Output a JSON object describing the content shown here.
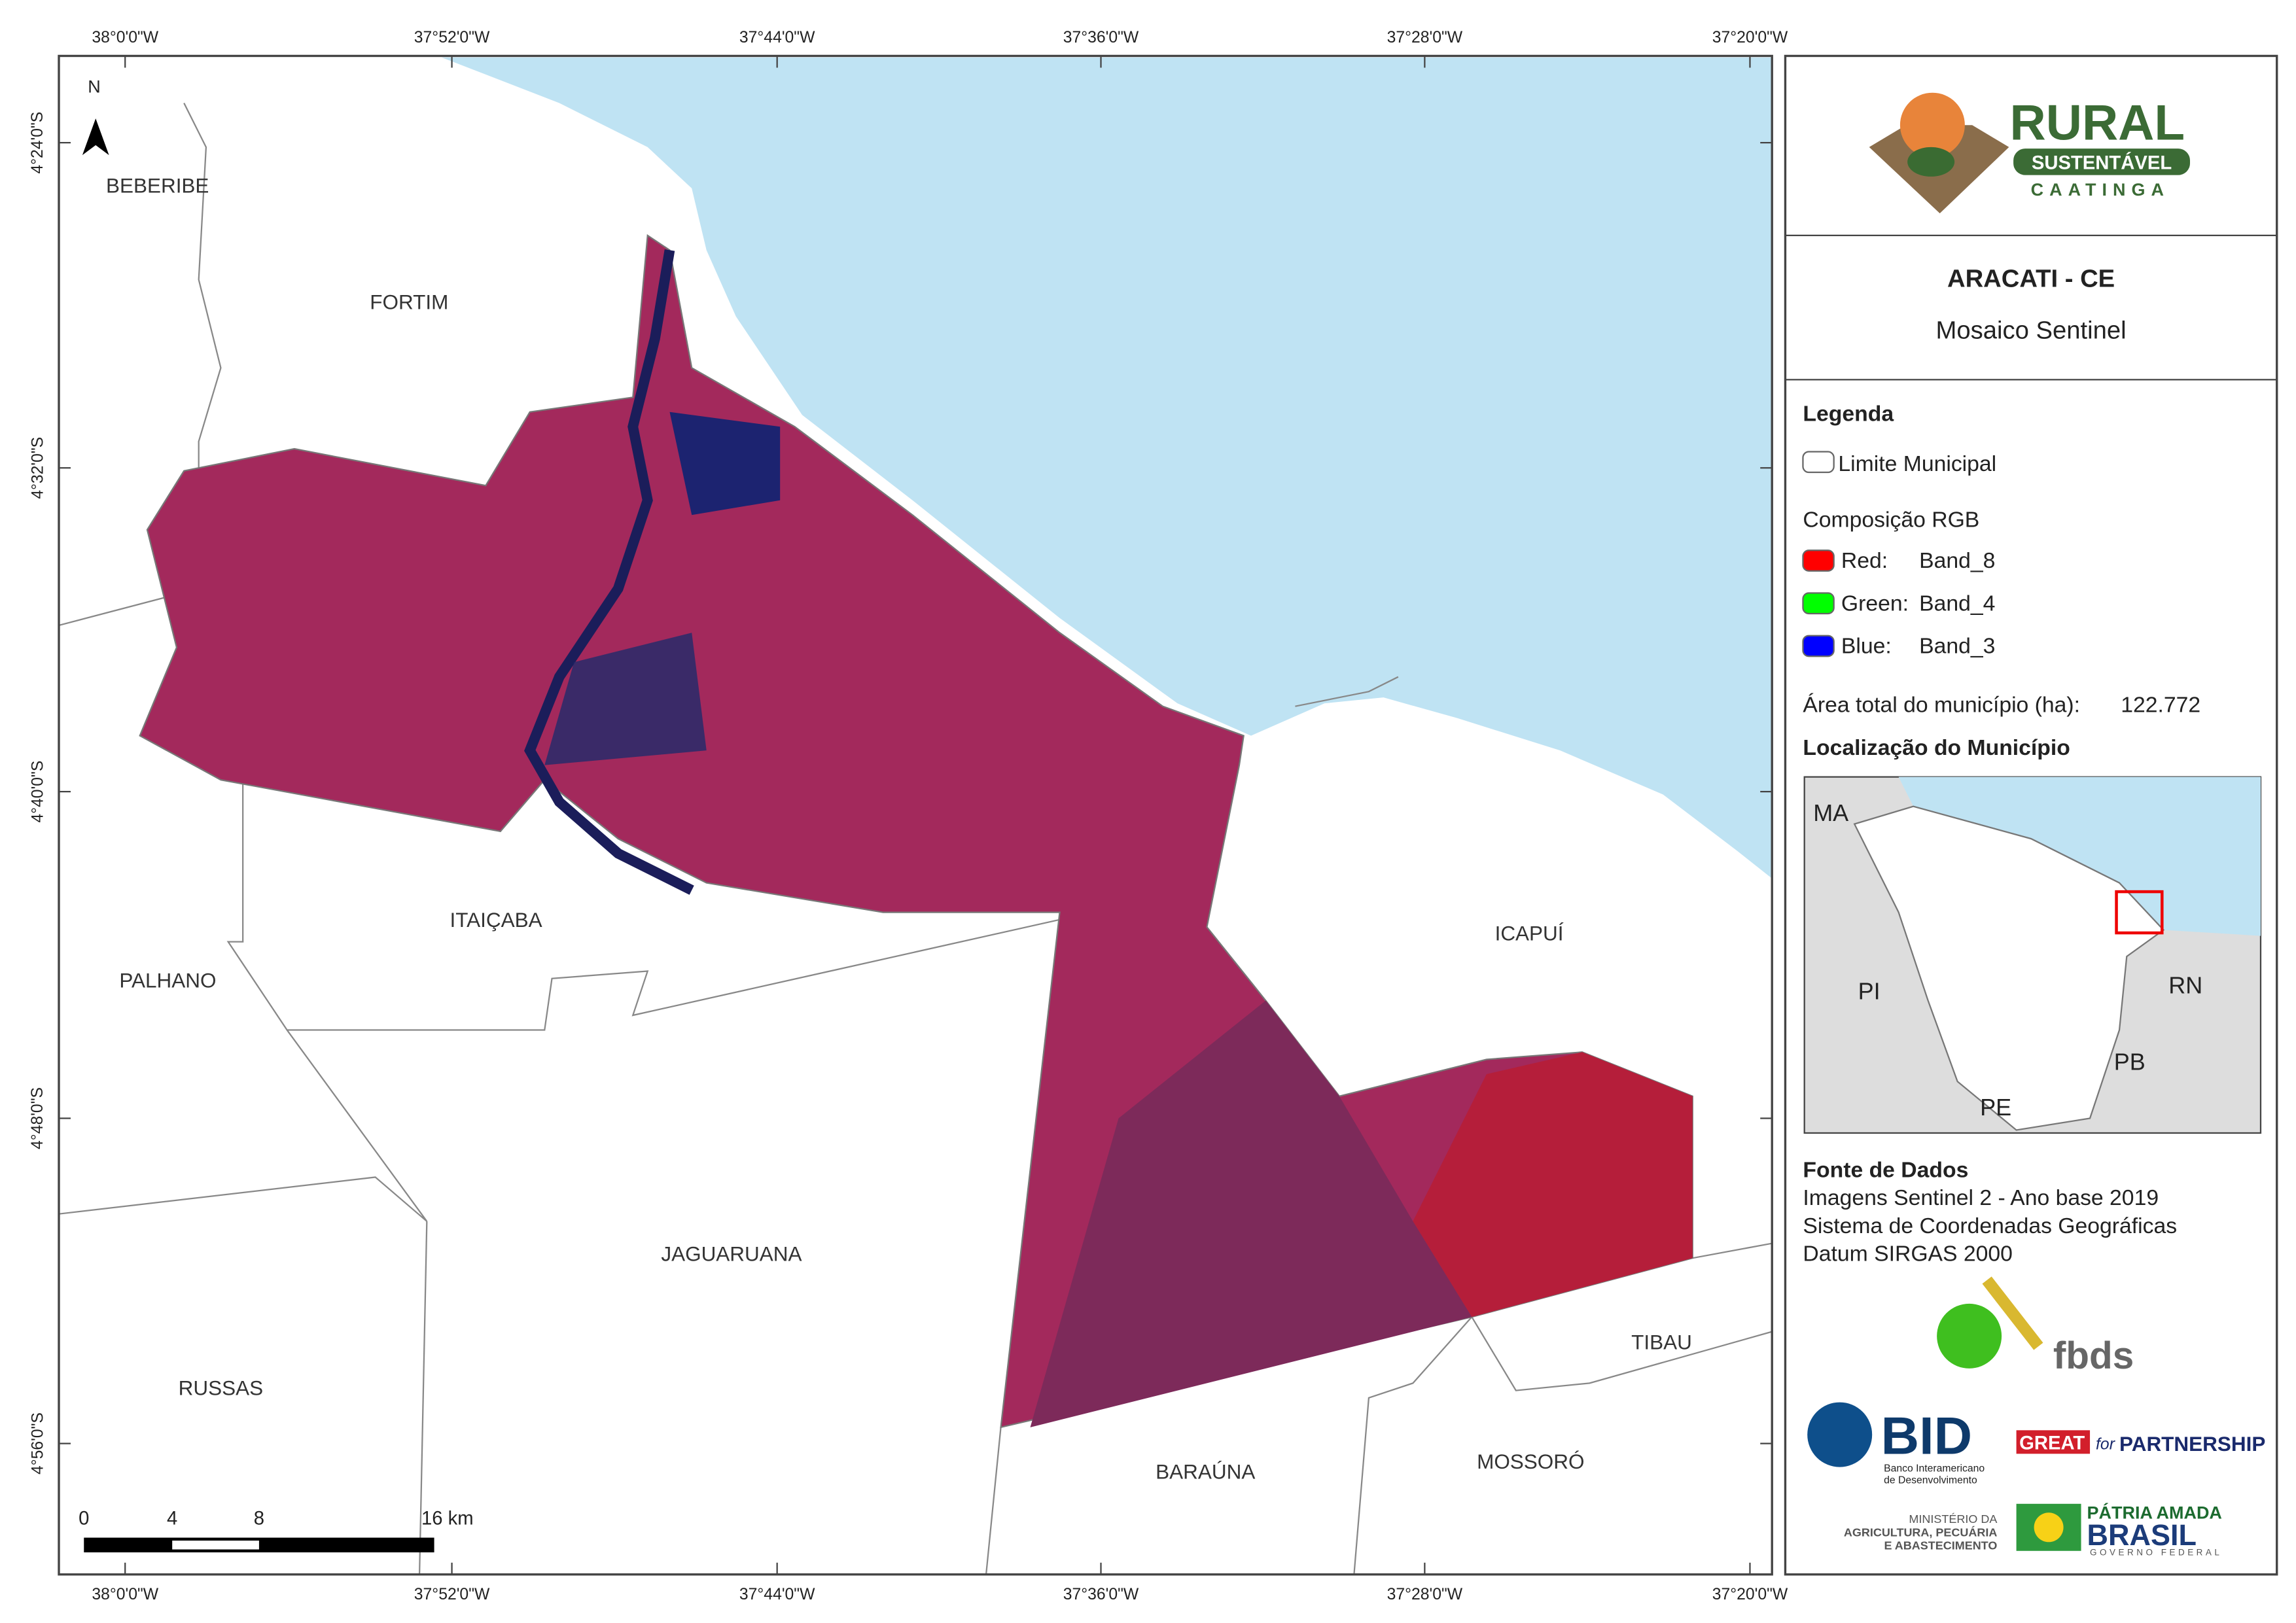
{
  "map": {
    "lon_labels": [
      "38°0'0\"W",
      "37°52'0\"W",
      "37°44'0\"W",
      "37°36'0\"W",
      "37°28'0\"W",
      "37°20'0\"W"
    ],
    "lat_labels": [
      "4°24'0\"S",
      "4°32'0\"S",
      "4°40'0\"S",
      "4°48'0\"S",
      "4°56'0\"S"
    ],
    "places": [
      "BEBERIBE",
      "FORTIM",
      "ITAIÇABA",
      "PALHANO",
      "ICAPUÍ",
      "JAGUARUANA",
      "RUSSAS",
      "TIBAU",
      "BARAÚNA",
      "MOSSORÓ"
    ],
    "north": "N",
    "scale_labels": [
      "0",
      "4",
      "8",
      "16 km"
    ]
  },
  "panel": {
    "logo": {
      "title": "RURAL",
      "band": "SUSTENTÁVEL",
      "sub": "CAATINGA"
    },
    "title": "ARACATI - CE",
    "subtitle": "Mosaico Sentinel",
    "legend_title": "Legenda",
    "boundary": "Limite Municipal",
    "rgb_title": "Composição RGB",
    "bands": [
      {
        "channel": "Red:",
        "band": "Band_8",
        "color": "#ff0000"
      },
      {
        "channel": "Green:",
        "band": "Band_4",
        "color": "#00ff00"
      },
      {
        "channel": "Blue:",
        "band": "Band_3",
        "color": "#0000ff"
      }
    ],
    "area_label": "Área total do município (ha):",
    "area_value": "122.772",
    "location_title": "Localização do Município",
    "inset_labels": [
      "MA",
      "PI",
      "RN",
      "PB",
      "PE"
    ],
    "sources_title": "Fonte de Dados",
    "sources": [
      "Imagens Sentinel 2 - Ano base 2019",
      "Sistema de Coordenadas Geográficas",
      "Datum SIRGAS 2000"
    ],
    "logos": {
      "fbds": "fbds",
      "bid": "BID",
      "bid_name": [
        "Banco Interamericano",
        "de Desenvolvimento"
      ],
      "great": "GREAT",
      "for": "for",
      "partnership": "PARTNERSHIP",
      "ministry": [
        "MINISTÉRIO DA",
        "AGRICULTURA, PECUÁRIA",
        "E ABASTECIMENTO"
      ],
      "patria": "PÁTRIA AMADA",
      "brasil": "BRASIL",
      "governo": "GOVERNO FEDERAL"
    }
  }
}
